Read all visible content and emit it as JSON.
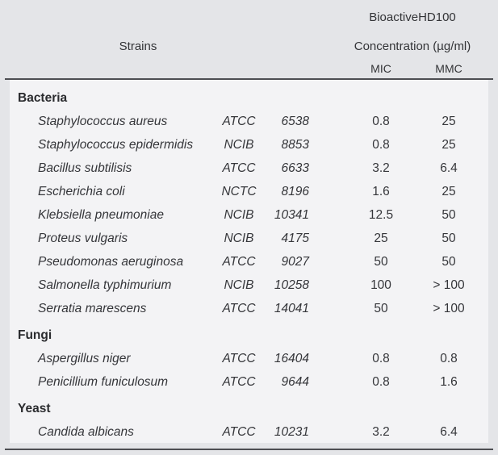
{
  "table": {
    "header": {
      "strains_label": "Strains",
      "group_line1": "BioactiveHD100",
      "group_line2": "Concentration (µg/ml)",
      "col_mic": "MIC",
      "col_mmc": "MMC"
    },
    "sections": [
      {
        "label": "Bacteria",
        "rows": [
          {
            "name": "Staphylococcus aureus",
            "collection": "ATCC",
            "number": "6538",
            "mic": "0.8",
            "mmc": "25"
          },
          {
            "name": "Staphylococcus epidermidis",
            "collection": "NCIB",
            "number": "8853",
            "mic": "0.8",
            "mmc": "25"
          },
          {
            "name": "Bacillus subtilisis",
            "collection": "ATCC",
            "number": "6633",
            "mic": "3.2",
            "mmc": "6.4"
          },
          {
            "name": "Escherichia coli",
            "collection": "NCTC",
            "number": "8196",
            "mic": "1.6",
            "mmc": "25"
          },
          {
            "name": "Klebsiella pneumoniae",
            "collection": "NCIB",
            "number": "10341",
            "mic": "12.5",
            "mmc": "50"
          },
          {
            "name": "Proteus vulgaris",
            "collection": "NCIB",
            "number": "4175",
            "mic": "25",
            "mmc": "50"
          },
          {
            "name": "Pseudomonas aeruginosa",
            "collection": "ATCC",
            "number": "9027",
            "mic": "50",
            "mmc": "50"
          },
          {
            "name": "Salmonella typhimurium",
            "collection": "NCIB",
            "number": "10258",
            "mic": "100",
            "mmc": "> 100"
          },
          {
            "name": "Serratia marescens",
            "collection": "ATCC",
            "number": "14041",
            "mic": "50",
            "mmc": "> 100"
          }
        ]
      },
      {
        "label": "Fungi",
        "rows": [
          {
            "name": "Aspergillus niger",
            "collection": "ATCC",
            "number": "16404",
            "mic": "0.8",
            "mmc": "0.8"
          },
          {
            "name": "Penicillium funiculosum",
            "collection": "ATCC",
            "number": "9644",
            "mic": "0.8",
            "mmc": "1.6"
          }
        ]
      },
      {
        "label": "Yeast",
        "rows": [
          {
            "name": "Candida albicans",
            "collection": "ATCC",
            "number": "10231",
            "mic": "3.2",
            "mmc": "6.4"
          }
        ]
      }
    ],
    "colors": {
      "page_bg": "#e4e5e8",
      "body_bg": "#f3f3f5",
      "rule": "#4d4e52",
      "text": "#35363a"
    }
  }
}
